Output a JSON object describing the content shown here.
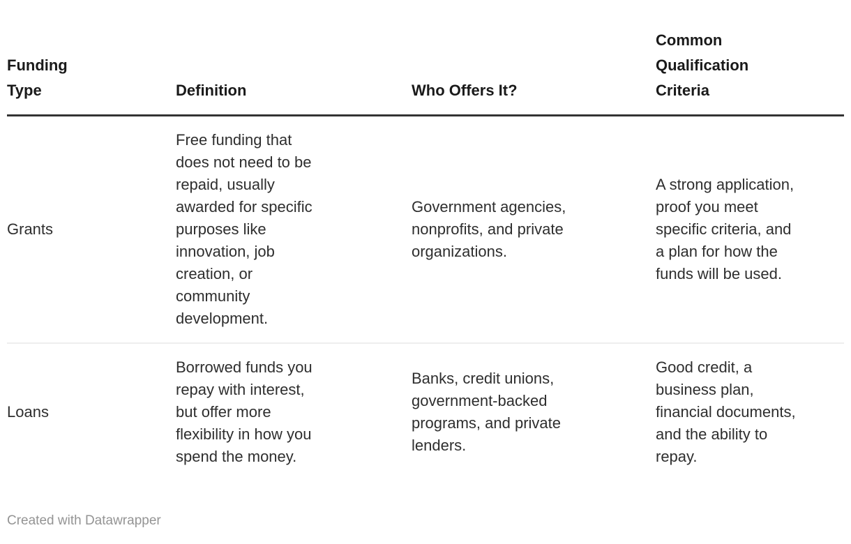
{
  "table": {
    "columns": [
      {
        "label": "Funding\nType"
      },
      {
        "label": "Definition"
      },
      {
        "label": "Who Offers It?"
      },
      {
        "label": "Common\nQualification\nCriteria"
      }
    ],
    "rows": [
      {
        "funding_type": "Grants",
        "definition": "Free funding that\ndoes not need to be\nrepaid, usually\nawarded for specific\npurposes like\ninnovation, job\ncreation, or\ncommunity\ndevelopment.",
        "who_offers": "Government agencies,\nnonprofits, and private\norganizations.",
        "criteria": "A strong application,\nproof you meet\nspecific criteria, and\na plan for how the\nfunds will be used."
      },
      {
        "funding_type": "Loans",
        "definition": "Borrowed funds you\nrepay with interest,\nbut offer more\nflexibility in how you\nspend the money.",
        "who_offers": "Banks, credit unions,\ngovernment-backed\nprograms, and private\nlenders.",
        "criteria": "Good credit, a\nbusiness plan,\nfinancial documents,\nand the ability to\nrepay."
      }
    ]
  },
  "footer": {
    "credit": "Created with Datawrapper"
  },
  "colors": {
    "background": "#ffffff",
    "header_text": "#1a1a1a",
    "body_text": "#2e2e2e",
    "header_rule": "#333333",
    "row_divider": "#eeeeee",
    "footer_text": "#949494"
  },
  "chart_data": {
    "type": "table",
    "title": "",
    "columns": [
      "Funding Type",
      "Definition",
      "Who Offers It?",
      "Common Qualification Criteria"
    ],
    "rows": [
      [
        "Grants",
        "Free funding that does not need to be repaid, usually awarded for specific purposes like innovation, job creation, or community development.",
        "Government agencies, nonprofits, and private organizations.",
        "A strong application, proof you meet specific criteria, and a plan for how the funds will be used."
      ],
      [
        "Loans",
        "Borrowed funds you repay with interest, but offer more flexibility in how you spend the money.",
        "Banks, credit unions, government-backed programs, and private lenders.",
        "Good credit, a business plan, financial documents, and the ability to repay."
      ]
    ],
    "layout": {
      "header_rule": true,
      "row_dividers": true,
      "gridlines_vertical": false
    },
    "footer": "Created with Datawrapper"
  }
}
